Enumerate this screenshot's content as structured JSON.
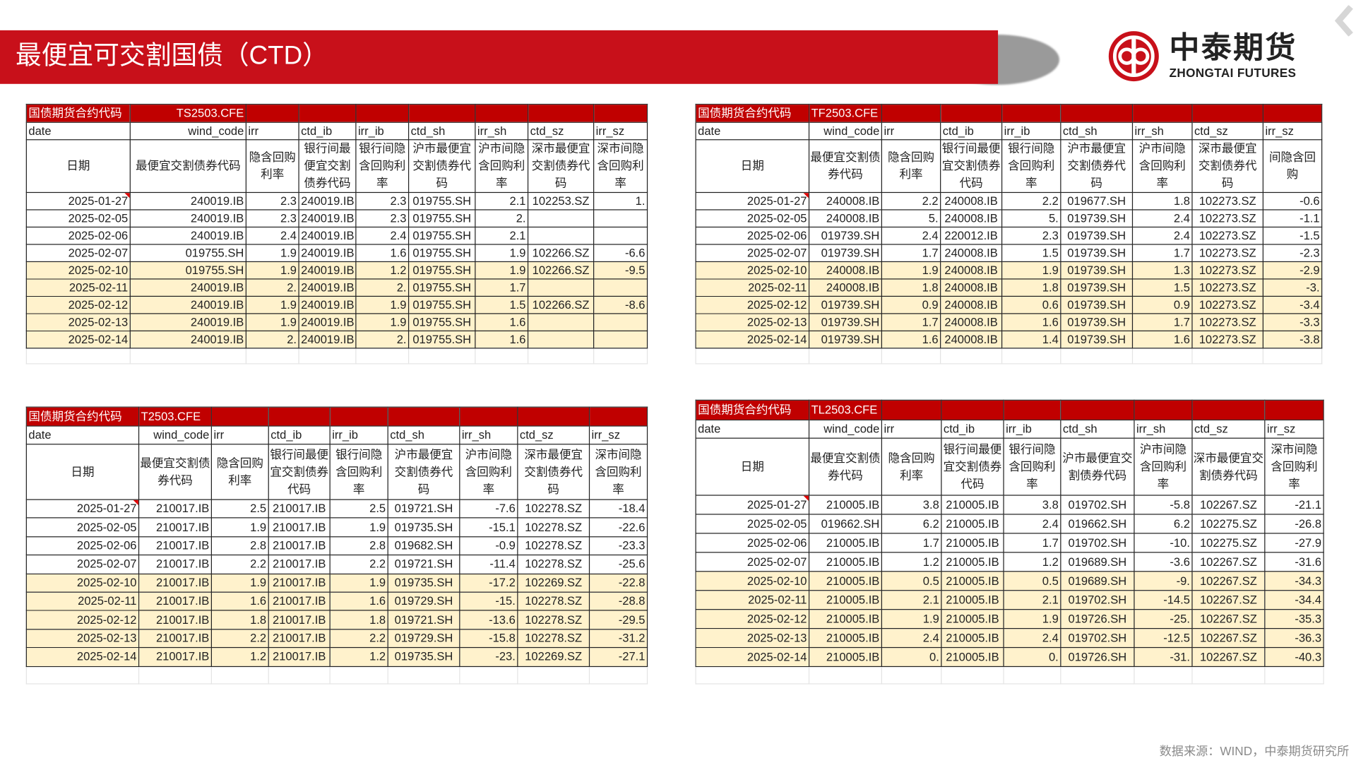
{
  "header": {
    "title": "最便宜可交割国债（CTD）"
  },
  "logo": {
    "cn": "中泰期货",
    "en": "ZHONGTAI FUTURES"
  },
  "footer": {
    "source": "数据来源：WIND，中泰期货研究所"
  },
  "colors": {
    "brand_red": "#c8101a",
    "table_header_red": "#c00000",
    "highlight_row": "#fff2cc"
  },
  "tables": [
    {
      "contract_label": "国债期货合约代码",
      "contract": "TS2503.CFE",
      "codes": [
        "date",
        "wind_code",
        "irr",
        "ctd_ib",
        "irr_ib",
        "ctd_sh",
        "irr_sh",
        "ctd_sz",
        "irr_sz"
      ],
      "headers": [
        "日期",
        "最便宜交割债券代码",
        "隐含回购利率",
        "银行间最便宜交割债券代码",
        "银行间隐含回购利率",
        "沪市最便宜交割债券代码",
        "沪市间隐含回购利率",
        "深市最便宜交割债券代码",
        "深市间隐含回购利率"
      ],
      "rows": [
        [
          "2025-01-27",
          "240019.IB",
          "2.3",
          "240019.IB",
          "2.3",
          "019755.SH",
          "2.1",
          "102253.SZ",
          "1."
        ],
        [
          "2025-02-05",
          "240019.IB",
          "2.3",
          "240019.IB",
          "2.3",
          "019755.SH",
          "2.",
          "",
          ""
        ],
        [
          "2025-02-06",
          "240019.IB",
          "2.4",
          "240019.IB",
          "2.4",
          "019755.SH",
          "2.1",
          "",
          ""
        ],
        [
          "2025-02-07",
          "019755.SH",
          "1.9",
          "240019.IB",
          "1.6",
          "019755.SH",
          "1.9",
          "102266.SZ",
          "-6.6"
        ],
        [
          "2025-02-10",
          "019755.SH",
          "1.9",
          "240019.IB",
          "1.2",
          "019755.SH",
          "1.9",
          "102266.SZ",
          "-9.5"
        ],
        [
          "2025-02-11",
          "240019.IB",
          "2.",
          "240019.IB",
          "2.",
          "019755.SH",
          "1.7",
          "",
          ""
        ],
        [
          "2025-02-12",
          "240019.IB",
          "1.9",
          "240019.IB",
          "1.9",
          "019755.SH",
          "1.5",
          "102266.SZ",
          "-8.6"
        ],
        [
          "2025-02-13",
          "240019.IB",
          "1.9",
          "240019.IB",
          "1.9",
          "019755.SH",
          "1.6",
          "",
          ""
        ],
        [
          "2025-02-14",
          "240019.IB",
          "2.",
          "240019.IB",
          "2.",
          "019755.SH",
          "1.6",
          "",
          ""
        ]
      ]
    },
    {
      "contract_label": "国债期货合约代码",
      "contract": "TF2503.CFE",
      "codes": [
        "date",
        "wind_code",
        "irr",
        "ctd_ib",
        "irr_ib",
        "ctd_sh",
        "irr_sh",
        "ctd_sz",
        "irr_sz"
      ],
      "headers": [
        "日期",
        "最便宜交割债券代码",
        "隐含回购利率",
        "银行间最便宜交割债券代码",
        "银行间隐含回购利率",
        "沪市最便宜交割债券代码",
        "沪市间隐含回购利率",
        "深市最便宜交割债券代码",
        "间隐含回购"
      ],
      "rows": [
        [
          "2025-01-27",
          "240008.IB",
          "2.2",
          "240008.IB",
          "2.2",
          "019677.SH",
          "1.8",
          "102273.SZ",
          "-0.6"
        ],
        [
          "2025-02-05",
          "240008.IB",
          "5.",
          "240008.IB",
          "5.",
          "019739.SH",
          "2.4",
          "102273.SZ",
          "-1.1"
        ],
        [
          "2025-02-06",
          "019739.SH",
          "2.4",
          "220012.IB",
          "2.3",
          "019739.SH",
          "2.4",
          "102273.SZ",
          "-1.5"
        ],
        [
          "2025-02-07",
          "019739.SH",
          "1.7",
          "240008.IB",
          "1.5",
          "019739.SH",
          "1.7",
          "102273.SZ",
          "-2.3"
        ],
        [
          "2025-02-10",
          "240008.IB",
          "1.9",
          "240008.IB",
          "1.9",
          "019739.SH",
          "1.3",
          "102273.SZ",
          "-2.9"
        ],
        [
          "2025-02-11",
          "240008.IB",
          "1.8",
          "240008.IB",
          "1.8",
          "019739.SH",
          "1.5",
          "102273.SZ",
          "-3."
        ],
        [
          "2025-02-12",
          "019739.SH",
          "0.9",
          "240008.IB",
          "0.6",
          "019739.SH",
          "0.9",
          "102273.SZ",
          "-3.4"
        ],
        [
          "2025-02-13",
          "019739.SH",
          "1.7",
          "240008.IB",
          "1.6",
          "019739.SH",
          "1.7",
          "102273.SZ",
          "-3.3"
        ],
        [
          "2025-02-14",
          "019739.SH",
          "1.6",
          "240008.IB",
          "1.4",
          "019739.SH",
          "1.6",
          "102273.SZ",
          "-3.8"
        ]
      ]
    },
    {
      "contract_label": "国债期货合约代码",
      "contract": "T2503.CFE",
      "codes": [
        "date",
        "wind_code",
        "irr",
        "ctd_ib",
        "irr_ib",
        "ctd_sh",
        "irr_sh",
        "ctd_sz",
        "irr_sz"
      ],
      "headers": [
        "日期",
        "最便宜交割债券代码",
        "隐含回购利率",
        "银行间最便宜交割债券代码",
        "银行间隐含回购利率",
        "沪市最便宜交割债券代码",
        "沪市间隐含回购利率",
        "深市最便宜交割债券代码",
        "深市间隐含回购利率"
      ],
      "rows": [
        [
          "2025-01-27",
          "210017.IB",
          "2.5",
          "210017.IB",
          "2.5",
          "019721.SH",
          "-7.6",
          "102278.SZ",
          "-18.4"
        ],
        [
          "2025-02-05",
          "210017.IB",
          "1.9",
          "210017.IB",
          "1.9",
          "019735.SH",
          "-15.1",
          "102278.SZ",
          "-22.6"
        ],
        [
          "2025-02-06",
          "210017.IB",
          "2.8",
          "210017.IB",
          "2.8",
          "019682.SH",
          "-0.9",
          "102278.SZ",
          "-23.3"
        ],
        [
          "2025-02-07",
          "210017.IB",
          "2.2",
          "210017.IB",
          "2.2",
          "019721.SH",
          "-11.4",
          "102278.SZ",
          "-25.6"
        ],
        [
          "2025-02-10",
          "210017.IB",
          "1.9",
          "210017.IB",
          "1.9",
          "019735.SH",
          "-17.2",
          "102269.SZ",
          "-22.8"
        ],
        [
          "2025-02-11",
          "210017.IB",
          "1.6",
          "210017.IB",
          "1.6",
          "019729.SH",
          "-15.",
          "102278.SZ",
          "-28.8"
        ],
        [
          "2025-02-12",
          "210017.IB",
          "1.8",
          "210017.IB",
          "1.8",
          "019721.SH",
          "-13.6",
          "102278.SZ",
          "-29.5"
        ],
        [
          "2025-02-13",
          "210017.IB",
          "2.2",
          "210017.IB",
          "2.2",
          "019729.SH",
          "-15.8",
          "102278.SZ",
          "-31.2"
        ],
        [
          "2025-02-14",
          "210017.IB",
          "1.2",
          "210017.IB",
          "1.2",
          "019735.SH",
          "-23.",
          "102269.SZ",
          "-27.1"
        ]
      ]
    },
    {
      "contract_label": "国债期货合约代码",
      "contract": "TL2503.CFE",
      "codes": [
        "date",
        "wind_code",
        "irr",
        "ctd_ib",
        "irr_ib",
        "ctd_sh",
        "irr_sh",
        "ctd_sz",
        "irr_sz"
      ],
      "headers": [
        "日期",
        "最便宜交割债券代码",
        "隐含回购利率",
        "银行间最便宜交割债券代码",
        "银行间隐含回购利率",
        "沪市最便宜交割债券代码",
        "沪市间隐含回购利率",
        "深市最便宜交割债券代码",
        "深市间隐含回购利率"
      ],
      "rows": [
        [
          "2025-01-27",
          "210005.IB",
          "3.8",
          "210005.IB",
          "3.8",
          "019702.SH",
          "-5.8",
          "102267.SZ",
          "-21.1"
        ],
        [
          "2025-02-05",
          "019662.SH",
          "6.2",
          "210005.IB",
          "2.4",
          "019662.SH",
          "6.2",
          "102275.SZ",
          "-26.8"
        ],
        [
          "2025-02-06",
          "210005.IB",
          "1.7",
          "210005.IB",
          "1.7",
          "019702.SH",
          "-10.",
          "102275.SZ",
          "-27.9"
        ],
        [
          "2025-02-07",
          "210005.IB",
          "1.2",
          "210005.IB",
          "1.2",
          "019689.SH",
          "-3.6",
          "102267.SZ",
          "-31.6"
        ],
        [
          "2025-02-10",
          "210005.IB",
          "0.5",
          "210005.IB",
          "0.5",
          "019689.SH",
          "-9.",
          "102267.SZ",
          "-34.3"
        ],
        [
          "2025-02-11",
          "210005.IB",
          "2.1",
          "210005.IB",
          "2.1",
          "019702.SH",
          "-14.5",
          "102267.SZ",
          "-34.4"
        ],
        [
          "2025-02-12",
          "210005.IB",
          "1.9",
          "210005.IB",
          "1.9",
          "019726.SH",
          "-25.",
          "102267.SZ",
          "-35.3"
        ],
        [
          "2025-02-13",
          "210005.IB",
          "2.4",
          "210005.IB",
          "2.4",
          "019702.SH",
          "-12.5",
          "102267.SZ",
          "-36.3"
        ],
        [
          "2025-02-14",
          "210005.IB",
          "0.",
          "210005.IB",
          "0.",
          "019726.SH",
          "-31.",
          "102267.SZ",
          "-40.3"
        ]
      ]
    }
  ]
}
